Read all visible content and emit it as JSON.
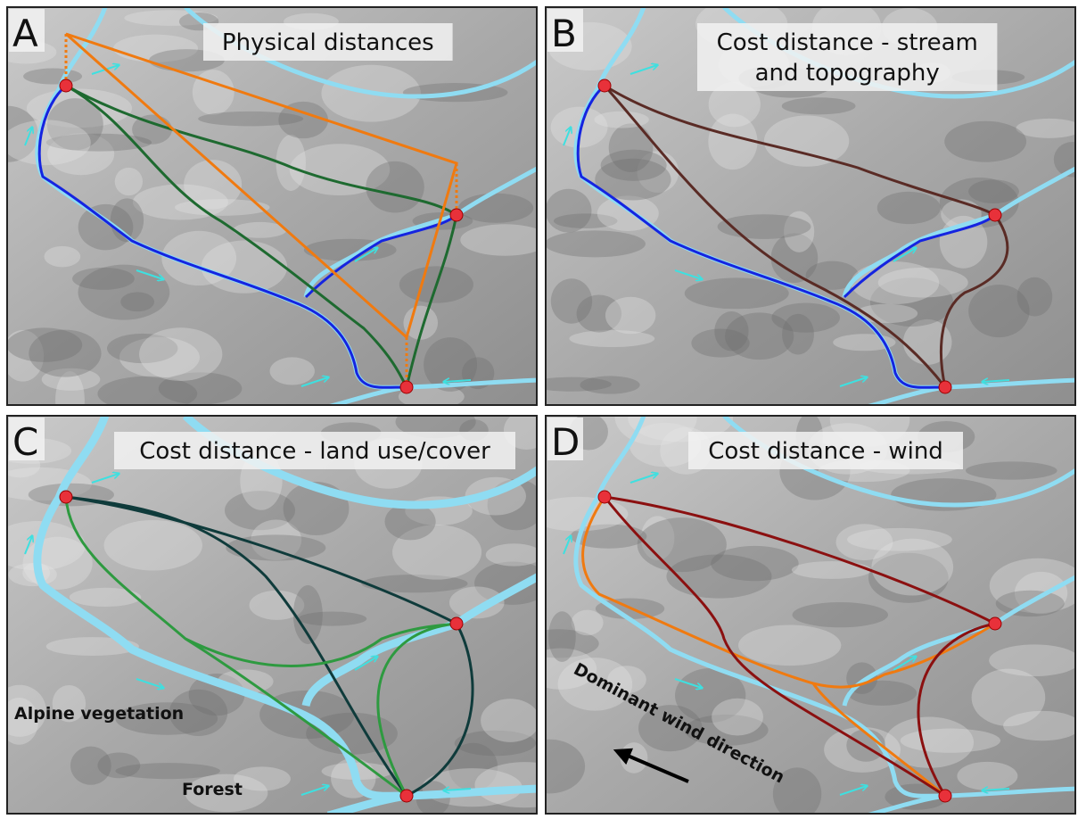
{
  "panels": [
    {
      "letter": "A",
      "title": [
        "Physical distances"
      ],
      "labels": []
    },
    {
      "letter": "B",
      "title": [
        "Cost distance - stream",
        "and topography"
      ],
      "labels": []
    },
    {
      "letter": "C",
      "title": [
        "Cost distance - land use/cover"
      ],
      "labels": [
        "Alpine vegetation",
        "Forest"
      ]
    },
    {
      "letter": "D",
      "title": [
        "Cost distance - wind"
      ],
      "labels": [
        "Dominant wind direction"
      ]
    }
  ]
}
